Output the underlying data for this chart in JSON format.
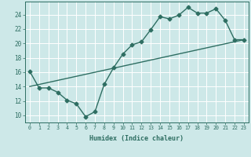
{
  "xlabel": "Humidex (Indice chaleur)",
  "ylabel": "",
  "background_color": "#cde8e8",
  "grid_color": "#ffffff",
  "line_color": "#2e6e62",
  "xlim": [
    -0.5,
    23.5
  ],
  "ylim": [
    9.0,
    25.8
  ],
  "xtick_labels": [
    "0",
    "1",
    "2",
    "3",
    "4",
    "5",
    "6",
    "7",
    "8",
    "9",
    "10",
    "11",
    "12",
    "13",
    "14",
    "15",
    "16",
    "17",
    "18",
    "19",
    "20",
    "21",
    "22",
    "23"
  ],
  "ytick_values": [
    10,
    12,
    14,
    16,
    18,
    20,
    22,
    24
  ],
  "curve1_x": [
    0,
    1,
    2,
    3,
    4,
    5,
    6,
    7,
    8,
    9,
    10,
    11,
    12,
    13,
    14,
    15,
    16,
    17,
    18,
    19,
    20,
    21,
    22,
    23
  ],
  "curve1_y": [
    16.1,
    13.8,
    13.8,
    13.2,
    12.1,
    11.6,
    9.8,
    10.5,
    14.3,
    16.6,
    18.5,
    19.8,
    20.2,
    21.9,
    23.7,
    23.4,
    23.9,
    25.0,
    24.2,
    24.2,
    24.8,
    23.2,
    20.5,
    20.5
  ],
  "curve2_x": [
    0,
    23
  ],
  "curve2_y": [
    14.0,
    20.5
  ],
  "marker_size": 2.5,
  "linewidth": 1.0
}
